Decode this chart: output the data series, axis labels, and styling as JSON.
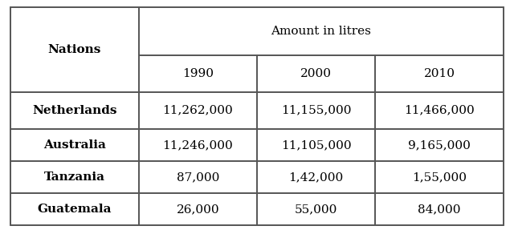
{
  "header_col": "Nations",
  "header_group": "Amount in litres",
  "years": [
    "1990",
    "2000",
    "2010"
  ],
  "nations": [
    "Netherlands",
    "Australia",
    "Tanzania",
    "Guatemala"
  ],
  "values": [
    [
      "11,262,000",
      "11,155,000",
      "11,466,000"
    ],
    [
      "11,246,000",
      "11,105,000",
      "9,165,000"
    ],
    [
      "87,000",
      "1,42,000",
      "1,55,000"
    ],
    [
      "26,000",
      "55,000",
      "84,000"
    ]
  ],
  "background_color": "#ffffff",
  "border_color": "#555555",
  "text_color": "#000000",
  "header_fontsize": 11,
  "cell_fontsize": 11
}
